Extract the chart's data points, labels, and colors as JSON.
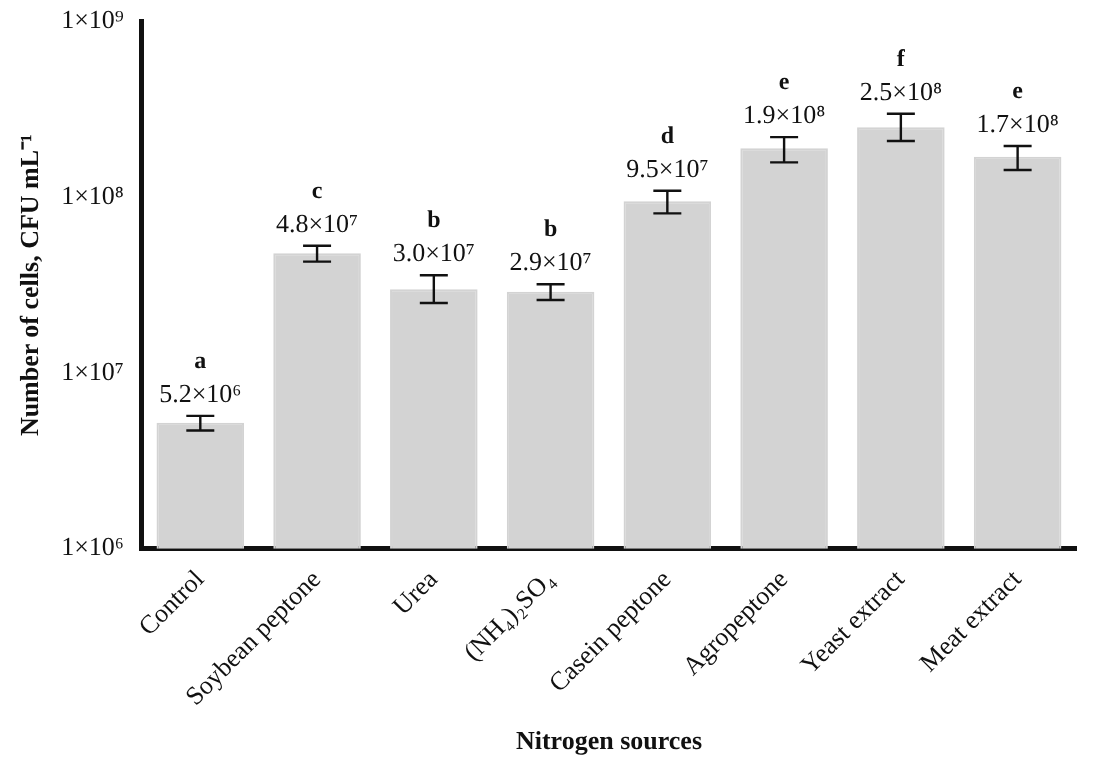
{
  "chart_data": {
    "type": "bar",
    "xlabel": "Nitrogen sources",
    "ylabel": "Number of cells, CFU mL⁻¹",
    "categories": [
      "Control",
      "Soybean peptone",
      "Urea",
      "(NH₄)₂SO₄",
      "Casein peptone",
      "Agropeptone",
      "Yeast extract",
      "Meat extract"
    ],
    "series": [
      {
        "color": "#d3d3d3",
        "values": [
          5200000,
          48000000,
          30000000,
          29000000,
          95000000,
          190000000,
          250000000,
          170000000
        ],
        "value_labels": [
          "5.2×10⁶",
          "4.8×10⁷",
          "3.0×10⁷",
          "2.9×10⁷",
          "9.5×10⁷",
          "1.9×10⁸",
          "2.5×10⁸",
          "1.7×10⁸"
        ],
        "errors": [
          [
            4700000,
            5700000
          ],
          [
            43000000,
            53000000
          ],
          [
            25000000,
            36000000
          ],
          [
            26000000,
            32000000
          ],
          [
            81000000,
            109000000
          ],
          [
            158000000,
            220000000
          ],
          [
            209000000,
            299000000
          ],
          [
            143000000,
            196000000
          ]
        ]
      }
    ],
    "log": "y",
    "ylim": [
      1000000,
      1000000000
    ],
    "yticks": [
      {
        "value": 1000000,
        "label": "1×10⁶"
      },
      {
        "value": 10000000,
        "label": "1×10⁷"
      },
      {
        "value": 100000000,
        "label": "1×10⁸"
      },
      {
        "value": 1000000000,
        "label": "1×10⁹"
      }
    ],
    "grid": false,
    "legend": false,
    "annotations": [
      {
        "text": "a",
        "x": "Control",
        "y": 5200000
      },
      {
        "text": "c",
        "x": "Soybean peptone",
        "y": 48000000
      },
      {
        "text": "b",
        "x": "Urea",
        "y": 30000000
      },
      {
        "text": "b",
        "x": "(NH₄)₂SO₄",
        "y": 29000000
      },
      {
        "text": "d",
        "x": "Casein peptone",
        "y": 95000000
      },
      {
        "text": "e",
        "x": "Agropeptone",
        "y": 190000000
      },
      {
        "text": "f",
        "x": "Yeast extract",
        "y": 250000000
      },
      {
        "text": "e",
        "x": "Meat extract",
        "y": 170000000
      }
    ]
  }
}
